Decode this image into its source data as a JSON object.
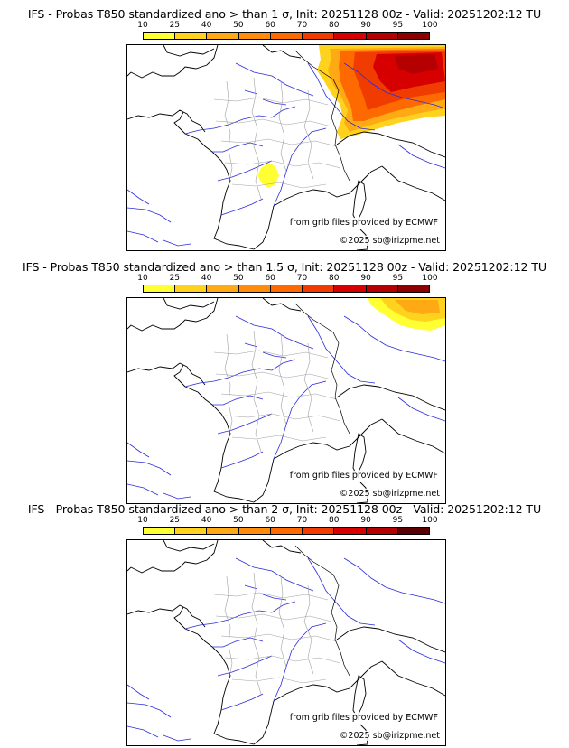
{
  "colors": {
    "c10": "#ffff33",
    "c25": "#ffd21e",
    "c40": "#ffaa14",
    "c50": "#ff8c0a",
    "c60": "#ff6a00",
    "c70": "#f03c00",
    "c80": "#d70000",
    "c90": "#b40000",
    "c95": "#8c0000",
    "c100": "#5a0000",
    "coast": "#000000",
    "rivers": "#2b2bdc",
    "borders": "#a0a0a0"
  },
  "colorbar_ticks": [
    "10",
    "25",
    "40",
    "50",
    "60",
    "70",
    "80",
    "90",
    "95",
    "100"
  ],
  "credits": {
    "source": "from grib files provided by ECMWF",
    "copyright": "©2025 sb@irizpme.net"
  },
  "panels": [
    {
      "title": "IFS - Probas T850  standardized ano > than 1 σ, Init: 20251128 00z - Valid: 20251202:12 TU",
      "threshold": "1 σ"
    },
    {
      "title": "IFS - Probas T850  standardized ano > than 1.5 σ, Init: 20251128 00z - Valid: 20251202:12 TU",
      "threshold": "1.5 σ"
    },
    {
      "title": "IFS - Probas T850  standardized ano > than 2 σ, Init: 20251128 00z - Valid: 20251202:12 TU",
      "threshold": "2 σ"
    }
  ]
}
